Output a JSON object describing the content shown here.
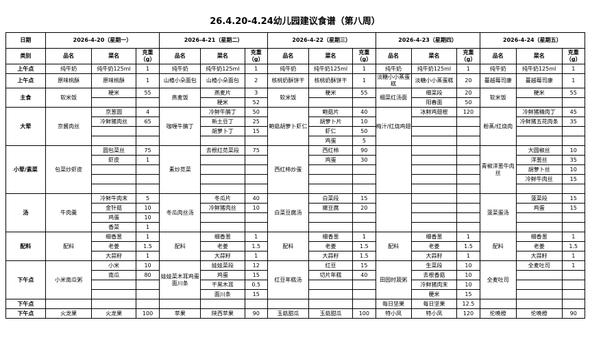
{
  "title": "26.4.20-4.24幼儿园建议食谱（第八周）",
  "headers": {
    "date": "日期",
    "category": "类别",
    "dish": "品名",
    "item": "菜名",
    "weight": "克重（g）"
  },
  "sections": [
    {
      "category": "上午点",
      "rows": 1
    },
    {
      "category": "上午点",
      "rows": 1
    },
    {
      "category": "主食",
      "rows": 2
    },
    {
      "category": "大荤",
      "rows": 4
    },
    {
      "category": "小荤/素菜",
      "rows": 5
    },
    {
      "category": "汤",
      "rows": 4
    },
    {
      "category": "配料",
      "rows": 3
    },
    {
      "category": "下午点",
      "rows": 4
    },
    {
      "category": "下午点",
      "rows": 1
    },
    {
      "category": "下午点",
      "rows": 1
    }
  ],
  "days": [
    {
      "date": "2026-4-20（星期一）",
      "meals": [
        {
          "dish": "纯牛奶",
          "items": [
            [
              "纯牛奶125ml",
              "1"
            ]
          ]
        },
        {
          "dish": "原味桃酥",
          "items": [
            [
              "原味桃酥",
              "1"
            ]
          ]
        },
        {
          "dish": "软米饭",
          "items": [
            [
              "粳米",
              "55"
            ]
          ]
        },
        {
          "dish": "京酱肉丝",
          "items": [
            [
              "京葱圆",
              "4"
            ],
            [
              "冷鲜猪肉丝",
              "65"
            ]
          ]
        },
        {
          "dish": "包菜炒虾皮",
          "items": [
            [
              "圆包菜丝",
              "75"
            ],
            [
              "虾皮",
              "1"
            ]
          ]
        },
        {
          "dish": "牛肉羹",
          "items": [
            [
              "冷鲜牛肉末",
              "5"
            ],
            [
              "金针菇",
              "10"
            ],
            [
              "鸡蛋",
              "10"
            ],
            [
              "香菜",
              "1"
            ]
          ]
        },
        {
          "dish": "配料",
          "items": [
            [
              "细香葱",
              "1"
            ],
            [
              "老姜",
              "1.5"
            ],
            [
              "大蒜籽",
              "1"
            ]
          ]
        },
        {
          "dish": "小米南瓜粥",
          "items": [
            [
              "小米",
              "10"
            ],
            [
              "南瓜",
              "80"
            ]
          ]
        },
        {
          "dish": "",
          "items": []
        },
        {
          "dish": "火龙果",
          "items": [
            [
              "火龙果",
              "100"
            ]
          ]
        }
      ]
    },
    {
      "date": "2026-4-21（星期二）",
      "meals": [
        {
          "dish": "纯牛奶",
          "items": [
            [
              "纯牛奶125ml",
              "1"
            ]
          ]
        },
        {
          "dish": "山楂小朵面包",
          "items": [
            [
              "山楂小朵面包",
              "2"
            ]
          ]
        },
        {
          "dish": "燕麦饭",
          "items": [
            [
              "燕麦片",
              "3"
            ],
            [
              "粳米",
              "52"
            ]
          ]
        },
        {
          "dish": "咖喱牛腩丁",
          "items": [
            [
              "冷鲜牛腩丁",
              "50"
            ],
            [
              "新土豆丁",
              "25"
            ],
            [
              "胡萝卜丁",
              "15"
            ]
          ]
        },
        {
          "dish": "素炒苋菜",
          "items": [
            [
              "去根红苋菜段",
              "75"
            ]
          ]
        },
        {
          "dish": "冬瓜肉丝汤",
          "items": [
            [
              "冬瓜片",
              "40"
            ],
            [
              "冷鲜猪肉丝",
              "10"
            ]
          ]
        },
        {
          "dish": "配料",
          "items": [
            [
              "细香葱",
              "1"
            ],
            [
              "老姜",
              "1.5"
            ],
            [
              "大蒜籽",
              "1"
            ]
          ]
        },
        {
          "dish": "娃娃菜木耳鸡蛋面川条",
          "items": [
            [
              "娃娃菜段",
              "12"
            ],
            [
              "鸡蛋",
              "15"
            ],
            [
              "干黑木耳",
              "0.5"
            ],
            [
              "面川条",
              "15"
            ]
          ]
        },
        {
          "dish": "",
          "items": []
        },
        {
          "dish": "苹果",
          "items": [
            [
              "陕西苹果",
              "90"
            ]
          ]
        }
      ]
    },
    {
      "date": "2026-4-22（星期三）",
      "meals": [
        {
          "dish": "纯牛奶",
          "items": [
            [
              "纯牛奶125ml",
              "1"
            ]
          ]
        },
        {
          "dish": "核桃奶酥饼干",
          "items": [
            [
              "核桃奶酥饼干",
              "1"
            ]
          ]
        },
        {
          "dish": "软米饭",
          "items": [
            [
              "粳米",
              "55"
            ]
          ]
        },
        {
          "dish": "鲍菇胡萝卜虾仁",
          "items": [
            [
              "鲍菇片",
              "40"
            ],
            [
              "胡萝卜片",
              "10"
            ],
            [
              "虾仁",
              "50"
            ],
            [
              "鸡蛋",
              "5"
            ]
          ]
        },
        {
          "dish": "西红柿炒蛋",
          "items": [
            [
              "西红柿",
              "90"
            ],
            [
              "鸡蛋",
              "30"
            ]
          ]
        },
        {
          "dish": "白菜豆腐汤",
          "items": [
            [
              "白菜段",
              "15"
            ],
            [
              "嫩豆腐",
              "20"
            ]
          ]
        },
        {
          "dish": "配料",
          "items": [
            [
              "细香葱",
              "1"
            ],
            [
              "老姜",
              "1.5"
            ],
            [
              "大蒜籽",
              "1.5"
            ]
          ]
        },
        {
          "dish": "红豆年糕汤",
          "items": [
            [
              "红豆",
              "15"
            ],
            [
              "切片年糕",
              "40"
            ]
          ]
        },
        {
          "dish": "",
          "items": []
        },
        {
          "dish": "玉菇甜瓜",
          "items": [
            [
              "玉菇甜瓜",
              "100"
            ]
          ]
        }
      ]
    },
    {
      "date": "2026-4-23（星期四）",
      "meals": [
        {
          "dish": "纯牛奶",
          "items": [
            [
              "纯牛奶125ml",
              "1"
            ]
          ]
        },
        {
          "dish": "淡糖小小蒸蛋糕",
          "items": [
            [
              "淡糖小小蒸蛋糕",
              "20"
            ]
          ]
        },
        {
          "dish": "细菜红汤面",
          "items": [
            [
              "细菜段",
              "20"
            ],
            [
              "阳春面",
              "50"
            ]
          ]
        },
        {
          "dish": "梅汁/红烧鸡翅",
          "items": [
            [
              "冰鲜鸡翅根",
              "120"
            ]
          ]
        },
        {
          "dish": "",
          "items": []
        },
        {
          "dish": "",
          "items": []
        },
        {
          "dish": "配料",
          "items": [
            [
              "细香葱",
              "1"
            ],
            [
              "老姜",
              "1.5"
            ],
            [
              "大蒜籽",
              "1"
            ]
          ]
        },
        {
          "dish": "田园时蔬粥",
          "items": [
            [
              "生菜段",
              "10"
            ],
            [
              "去根香菇",
              "10"
            ],
            [
              "冷鲜猪肉末",
              "10"
            ],
            [
              "粳米",
              "15"
            ]
          ]
        },
        {
          "dish": "每日坚果",
          "items": [
            [
              "每日坚果",
              "12.5"
            ]
          ]
        },
        {
          "dish": "特小凤",
          "items": [
            [
              "特小凤",
              "120"
            ]
          ]
        }
      ]
    },
    {
      "date": "2026-4-24（星期五）",
      "meals": [
        {
          "dish": "纯牛奶",
          "items": [
            [
              "纯牛奶125ml",
              "1"
            ]
          ]
        },
        {
          "dish": "蔓越莓司康",
          "items": [
            [
              "蔓越莓司康",
              "1"
            ]
          ]
        },
        {
          "dish": "软米饭",
          "items": [
            [
              "粳米",
              "55"
            ]
          ]
        },
        {
          "dish": "粉蒸/红烧肉",
          "items": [
            [
              "冷鲜猪精肉丁",
              "45"
            ],
            [
              "冷鲜猪五花肉条",
              "35"
            ]
          ]
        },
        {
          "dish": "青椒洋葱牛肉丝",
          "items": [
            [
              "大圆椒丝",
              "10"
            ],
            [
              "洋葱丝",
              "35"
            ],
            [
              "胡萝卜丝",
              "10"
            ],
            [
              "冷鲜牛肉丝",
              "15"
            ]
          ]
        },
        {
          "dish": "菠菜蛋汤",
          "items": [
            [
              "菠菜段",
              "15"
            ],
            [
              "鸡蛋",
              "15"
            ]
          ]
        },
        {
          "dish": "配料",
          "items": [
            [
              "细香葱",
              "1"
            ],
            [
              "老姜",
              "1.5"
            ],
            [
              "大蒜籽",
              "1"
            ]
          ]
        },
        {
          "dish": "全麦吐司",
          "items": [
            [
              "全麦吐司",
              "1"
            ]
          ]
        },
        {
          "dish": "",
          "items": []
        },
        {
          "dish": "伦晚橙",
          "items": [
            [
              "伦晚橙",
              "90"
            ]
          ]
        }
      ]
    }
  ]
}
